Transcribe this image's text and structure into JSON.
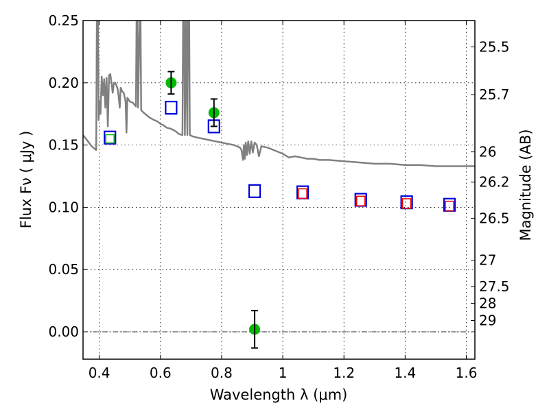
{
  "chart_data": {
    "type": "scatter",
    "title": "",
    "xlabel": "Wavelength  λ (μm)",
    "ylabel": "Flux  Fν  ( μJy )",
    "y2label": "Magnitude (AB)",
    "xlim": [
      0.347,
      1.628
    ],
    "ylim": [
      -0.022,
      0.25
    ],
    "grid": true,
    "x_ticks": [
      0.4,
      0.6,
      0.8,
      1.0,
      1.2,
      1.4,
      1.6
    ],
    "x_tick_labels": [
      "0.4",
      "0.6",
      "0.8",
      "1",
      "1.2",
      "1.4",
      "1.6"
    ],
    "y_ticks": [
      0.0,
      0.05,
      0.1,
      0.15,
      0.2,
      0.25
    ],
    "y_tick_labels": [
      "0.00",
      "0.05",
      "0.10",
      "0.15",
      "0.20",
      "0.25"
    ],
    "y2_ticks": [
      {
        "label": "25.5",
        "flux": 0.2289
      },
      {
        "label": "25.7",
        "flux": 0.1905
      },
      {
        "label": "26",
        "flux": 0.1445
      },
      {
        "label": "26.2",
        "flux": 0.1202
      },
      {
        "label": "26.5",
        "flux": 0.0912
      },
      {
        "label": "27",
        "flux": 0.0575
      },
      {
        "label": "27.5",
        "flux": 0.0363
      },
      {
        "label": "28",
        "flux": 0.0229
      },
      {
        "label": "29",
        "flux": 0.0091
      }
    ],
    "zero_line": 0.0,
    "colors": {
      "spectrum": "#808080",
      "observed": "#00bb00",
      "model_blue": "#0000dd",
      "model_red": "#ee0000",
      "model_green": "#00bb00",
      "errorbar": "#000000"
    },
    "series": [
      {
        "name": "observed photometry",
        "marker": "filled-circle",
        "points": [
          {
            "x": 0.635,
            "y": 0.2,
            "err": 0.009
          },
          {
            "x": 0.775,
            "y": 0.176,
            "err": 0.011
          },
          {
            "x": 0.908,
            "y": 0.002,
            "err": 0.015
          }
        ]
      },
      {
        "name": "model fluxes (blue squares)",
        "marker": "open-square",
        "points": [
          {
            "x": 0.435,
            "y": 0.156
          },
          {
            "x": 0.635,
            "y": 0.18
          },
          {
            "x": 0.775,
            "y": 0.165
          },
          {
            "x": 0.908,
            "y": 0.113
          },
          {
            "x": 1.065,
            "y": 0.112
          },
          {
            "x": 1.255,
            "y": 0.106
          },
          {
            "x": 1.405,
            "y": 0.104
          },
          {
            "x": 1.545,
            "y": 0.102
          }
        ]
      },
      {
        "name": "model fluxes (red squares)",
        "marker": "open-square-small",
        "points": [
          {
            "x": 1.065,
            "y": 0.111
          },
          {
            "x": 1.255,
            "y": 0.105
          },
          {
            "x": 1.405,
            "y": 0.103
          },
          {
            "x": 1.545,
            "y": 0.101
          }
        ]
      },
      {
        "name": "model flux (green square)",
        "marker": "open-square-small",
        "points": [
          {
            "x": 0.435,
            "y": 0.155
          }
        ]
      },
      {
        "name": "model spectrum",
        "marker": "line",
        "points": [
          [
            0.347,
            0.158
          ],
          [
            0.36,
            0.154
          ],
          [
            0.375,
            0.149
          ],
          [
            0.385,
            0.147
          ],
          [
            0.39,
            0.146
          ],
          [
            0.392,
            0.25
          ],
          [
            0.396,
            0.25
          ],
          [
            0.398,
            0.17
          ],
          [
            0.402,
            0.185
          ],
          [
            0.404,
            0.175
          ],
          [
            0.408,
            0.205
          ],
          [
            0.412,
            0.19
          ],
          [
            0.416,
            0.203
          ],
          [
            0.42,
            0.18
          ],
          [
            0.424,
            0.204
          ],
          [
            0.428,
            0.165
          ],
          [
            0.432,
            0.206
          ],
          [
            0.436,
            0.207
          ],
          [
            0.44,
            0.2
          ],
          [
            0.444,
            0.192
          ],
          [
            0.448,
            0.2
          ],
          [
            0.452,
            0.2
          ],
          [
            0.456,
            0.198
          ],
          [
            0.46,
            0.195
          ],
          [
            0.463,
            0.19
          ],
          [
            0.467,
            0.18
          ],
          [
            0.47,
            0.196
          ],
          [
            0.475,
            0.193
          ],
          [
            0.48,
            0.192
          ],
          [
            0.486,
            0.185
          ],
          [
            0.489,
            0.16
          ],
          [
            0.492,
            0.188
          ],
          [
            0.5,
            0.185
          ],
          [
            0.51,
            0.184
          ],
          [
            0.52,
            0.181
          ],
          [
            0.522,
            0.25
          ],
          [
            0.525,
            0.25
          ],
          [
            0.527,
            0.18
          ],
          [
            0.532,
            0.25
          ],
          [
            0.535,
            0.25
          ],
          [
            0.537,
            0.178
          ],
          [
            0.545,
            0.176
          ],
          [
            0.555,
            0.174
          ],
          [
            0.565,
            0.172
          ],
          [
            0.58,
            0.17
          ],
          [
            0.59,
            0.169
          ],
          [
            0.6,
            0.167
          ],
          [
            0.61,
            0.166
          ],
          [
            0.62,
            0.164
          ],
          [
            0.635,
            0.163
          ],
          [
            0.65,
            0.161
          ],
          [
            0.66,
            0.159
          ],
          [
            0.672,
            0.158
          ],
          [
            0.674,
            0.25
          ],
          [
            0.678,
            0.25
          ],
          [
            0.68,
            0.158
          ],
          [
            0.684,
            0.25
          ],
          [
            0.688,
            0.158
          ],
          [
            0.69,
            0.25
          ],
          [
            0.694,
            0.25
          ],
          [
            0.696,
            0.158
          ],
          [
            0.705,
            0.157
          ],
          [
            0.72,
            0.156
          ],
          [
            0.74,
            0.155
          ],
          [
            0.76,
            0.154
          ],
          [
            0.78,
            0.153
          ],
          [
            0.8,
            0.152
          ],
          [
            0.82,
            0.151
          ],
          [
            0.84,
            0.15
          ],
          [
            0.85,
            0.149
          ],
          [
            0.86,
            0.148
          ],
          [
            0.865,
            0.146
          ],
          [
            0.87,
            0.138
          ],
          [
            0.873,
            0.15
          ],
          [
            0.876,
            0.139
          ],
          [
            0.879,
            0.152
          ],
          [
            0.883,
            0.142
          ],
          [
            0.887,
            0.153
          ],
          [
            0.892,
            0.143
          ],
          [
            0.897,
            0.153
          ],
          [
            0.902,
            0.144
          ],
          [
            0.908,
            0.152
          ],
          [
            0.915,
            0.15
          ],
          [
            0.922,
            0.141
          ],
          [
            0.93,
            0.149
          ],
          [
            0.95,
            0.148
          ],
          [
            0.97,
            0.146
          ],
          [
            0.99,
            0.144
          ],
          [
            1.0,
            0.143
          ],
          [
            1.02,
            0.14
          ],
          [
            1.04,
            0.141
          ],
          [
            1.06,
            0.14
          ],
          [
            1.08,
            0.139
          ],
          [
            1.1,
            0.139
          ],
          [
            1.12,
            0.138
          ],
          [
            1.15,
            0.138
          ],
          [
            1.2,
            0.137
          ],
          [
            1.25,
            0.136
          ],
          [
            1.3,
            0.135
          ],
          [
            1.35,
            0.135
          ],
          [
            1.4,
            0.134
          ],
          [
            1.45,
            0.134
          ],
          [
            1.5,
            0.133
          ],
          [
            1.55,
            0.133
          ],
          [
            1.6,
            0.133
          ],
          [
            1.628,
            0.133
          ]
        ]
      }
    ]
  }
}
